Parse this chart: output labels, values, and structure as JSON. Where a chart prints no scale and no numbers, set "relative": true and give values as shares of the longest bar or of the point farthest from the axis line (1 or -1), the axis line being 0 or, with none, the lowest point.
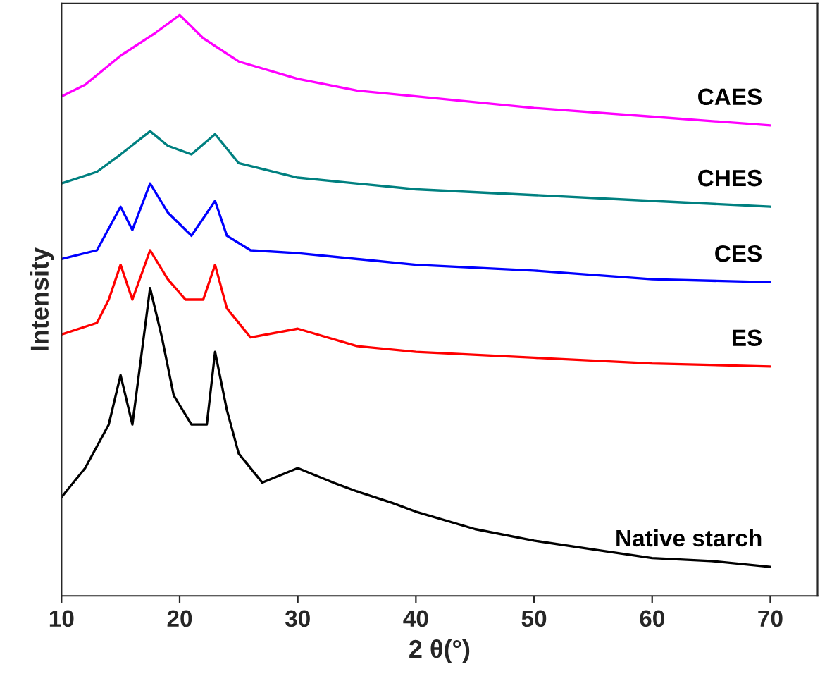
{
  "chart_data": {
    "type": "line",
    "relative": true,
    "xlabel": "2 θ(°)",
    "ylabel": "Intensity",
    "xlim": [
      10,
      74
    ],
    "xticks": [
      10,
      20,
      30,
      40,
      50,
      60,
      70
    ],
    "legend": false,
    "grid": false,
    "marker": "none",
    "line_style": "solid",
    "series": [
      {
        "name": "Native starch",
        "color": "#000000",
        "x": [
          10,
          12,
          14,
          15,
          16,
          17.5,
          18.5,
          19.5,
          21,
          22.3,
          23,
          24,
          25,
          27,
          30,
          33,
          35,
          38,
          40,
          45,
          50,
          55,
          60,
          65,
          70
        ],
        "values": [
          0.17,
          0.22,
          0.295,
          0.38,
          0.295,
          0.53,
          0.445,
          0.345,
          0.295,
          0.295,
          0.42,
          0.32,
          0.245,
          0.195,
          0.22,
          0.195,
          0.18,
          0.16,
          0.145,
          0.115,
          0.095,
          0.08,
          0.065,
          0.06,
          0.05
        ]
      },
      {
        "name": "ES",
        "color": "#ff0000",
        "x": [
          10,
          13,
          14,
          15,
          16,
          17.5,
          19,
          20.5,
          22,
          23,
          24,
          26,
          30,
          35,
          40,
          50,
          60,
          70
        ],
        "values": [
          0.45,
          0.47,
          0.51,
          0.57,
          0.51,
          0.595,
          0.545,
          0.51,
          0.51,
          0.57,
          0.495,
          0.445,
          0.46,
          0.43,
          0.42,
          0.41,
          0.4,
          0.395
        ]
      },
      {
        "name": "CES",
        "color": "#0000ff",
        "x": [
          10,
          13,
          15,
          16,
          17.5,
          19,
          21,
          23,
          24,
          26,
          30,
          40,
          50,
          60,
          70
        ],
        "values": [
          0.58,
          0.595,
          0.67,
          0.63,
          0.71,
          0.66,
          0.62,
          0.68,
          0.62,
          0.595,
          0.59,
          0.57,
          0.56,
          0.545,
          0.54
        ]
      },
      {
        "name": "CHES",
        "color": "#008080",
        "x": [
          10,
          13,
          15,
          17.5,
          19,
          21,
          23,
          25,
          30,
          40,
          50,
          60,
          70
        ],
        "values": [
          0.71,
          0.73,
          0.76,
          0.8,
          0.775,
          0.76,
          0.795,
          0.745,
          0.72,
          0.7,
          0.69,
          0.68,
          0.67
        ]
      },
      {
        "name": "CAES",
        "color": "#ff00ff",
        "x": [
          10,
          12,
          15,
          18,
          20,
          22,
          25,
          30,
          35,
          40,
          50,
          60,
          70
        ],
        "values": [
          0.86,
          0.88,
          0.93,
          0.97,
          1.0,
          0.96,
          0.92,
          0.89,
          0.87,
          0.86,
          0.84,
          0.825,
          0.81
        ]
      }
    ]
  }
}
